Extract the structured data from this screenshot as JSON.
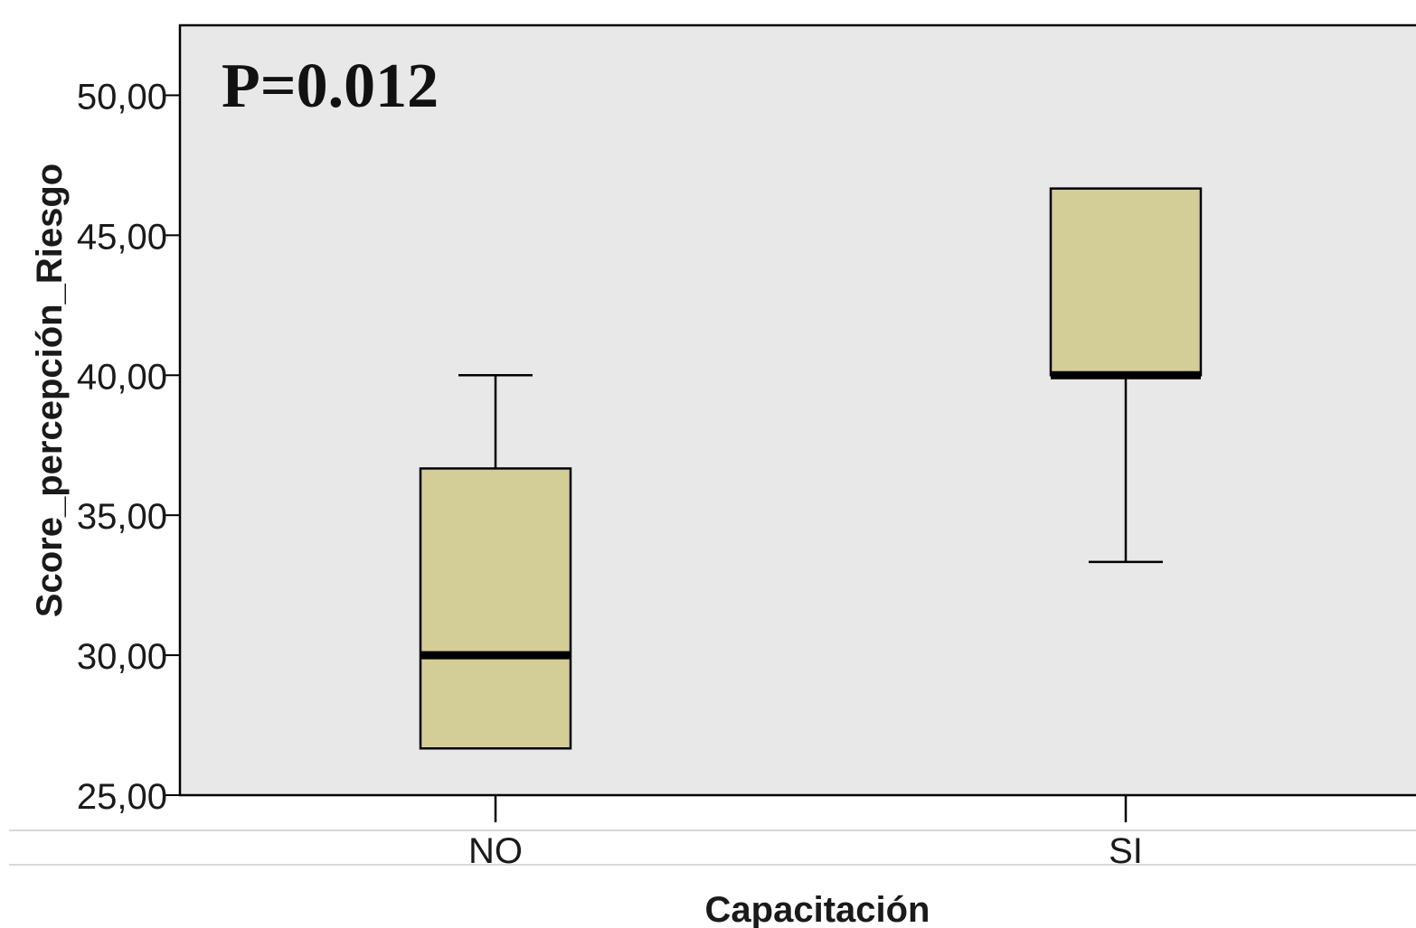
{
  "chart_data": {
    "type": "boxplot",
    "xlabel": "Capacitación",
    "ylabel": "Score_percepción_Riesgo",
    "ylim": [
      25,
      52.5
    ],
    "yticks": [
      "25,00",
      "30,00",
      "35,00",
      "40,00",
      "45,00",
      "50,00"
    ],
    "ytick_values": [
      25,
      30,
      35,
      40,
      45,
      50
    ],
    "categories": [
      "NO",
      "SI"
    ],
    "boxes": [
      {
        "category": "NO",
        "min": 26.67,
        "q1": 26.67,
        "median": 30.0,
        "q3": 36.67,
        "max": 40.0
      },
      {
        "category": "SI",
        "min": 33.33,
        "q1": 40.0,
        "median": 40.0,
        "q3": 46.67,
        "max": 46.67
      }
    ],
    "annotation": "P=0.012",
    "grid": false,
    "colors": {
      "plot_background": "#e8e8e8",
      "box_fill": "#d3cd97",
      "box_stroke": "#000000",
      "median": "#000000"
    }
  }
}
